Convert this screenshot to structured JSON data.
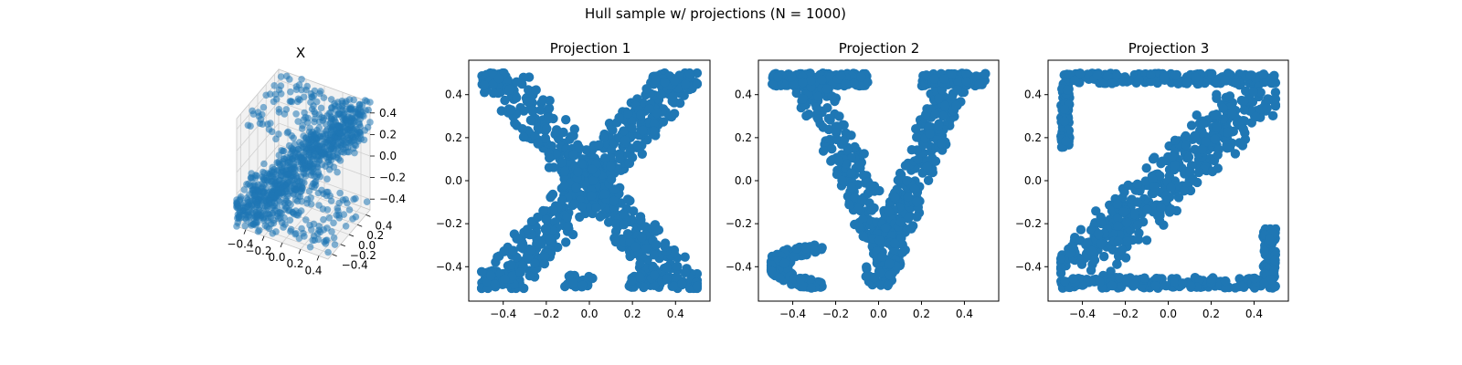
{
  "figure": {
    "suptitle": "Hull sample w/ projections (N = 1000)"
  },
  "style": {
    "marker_color": "#1f77b4",
    "axis_color": "#000000",
    "pane_color": "#f2f2f2",
    "grid_color": "#d0d0d0"
  },
  "chart_data": [
    {
      "type": "scatter3d",
      "title": "X",
      "n_points": 1000,
      "xlim": [
        -0.5,
        0.5
      ],
      "ylim": [
        -0.5,
        0.5
      ],
      "zlim": [
        -0.5,
        0.5
      ],
      "x_ticks": [
        "−0.4",
        "−0.2",
        "0.0",
        "0.2",
        "0.4"
      ],
      "y_ticks": [
        "−0.4",
        "−0.2",
        "0.0",
        "0.2",
        "0.4"
      ],
      "z_ticks": [
        "−0.4",
        "−0.2",
        "0.0",
        "0.2",
        "0.4"
      ],
      "grid": true
    },
    {
      "type": "scatter",
      "title": "Projection 1",
      "shape": "letter X",
      "n_points": 1000,
      "xlim": [
        -0.56,
        0.56
      ],
      "ylim": [
        -0.56,
        0.56
      ],
      "x_ticks": [
        "−0.4",
        "−0.2",
        "0.0",
        "0.2",
        "0.4"
      ],
      "y_ticks": [
        "−0.4",
        "−0.2",
        "0.0",
        "0.2",
        "0.4"
      ],
      "clusters": [
        {
          "x": [
            -0.5,
            -0.35
          ],
          "y": [
            0.42,
            0.5
          ]
        },
        {
          "x": [
            0.28,
            0.46
          ],
          "y": [
            0.44,
            0.5
          ]
        },
        {
          "x": [
            -0.5,
            -0.38
          ],
          "y": [
            -0.5,
            -0.42
          ]
        },
        {
          "x": [
            -0.12,
            0.02
          ],
          "y": [
            -0.5,
            -0.44
          ]
        },
        {
          "x": [
            0.18,
            0.32
          ],
          "y": [
            -0.5,
            -0.44
          ]
        }
      ]
    },
    {
      "type": "scatter",
      "title": "Projection 2",
      "shape": "letter y",
      "n_points": 1000,
      "xlim": [
        -0.56,
        0.56
      ],
      "ylim": [
        -0.56,
        0.56
      ],
      "x_ticks": [
        "−0.4",
        "−0.2",
        "0.0",
        "0.2",
        "0.4"
      ],
      "y_ticks": [
        "−0.4",
        "−0.2",
        "0.0",
        "0.2",
        "0.4"
      ],
      "clusters": [
        {
          "x": [
            -0.5,
            -0.05
          ],
          "y": [
            0.44,
            0.5
          ]
        },
        {
          "x": [
            0.2,
            0.5
          ],
          "y": [
            0.44,
            0.5
          ]
        }
      ]
    },
    {
      "type": "scatter",
      "title": "Projection 3",
      "shape": "letter Z",
      "n_points": 1000,
      "xlim": [
        -0.56,
        0.56
      ],
      "ylim": [
        -0.56,
        0.56
      ],
      "x_ticks": [
        "−0.4",
        "−0.2",
        "0.0",
        "0.2",
        "0.4"
      ],
      "y_ticks": [
        "−0.4",
        "−0.2",
        "0.0",
        "0.2",
        "0.4"
      ],
      "clusters": [
        {
          "x": [
            -0.5,
            0.5
          ],
          "y": [
            0.45,
            0.5
          ]
        },
        {
          "x": [
            -0.5,
            0.5
          ],
          "y": [
            -0.5,
            -0.45
          ]
        }
      ]
    }
  ]
}
